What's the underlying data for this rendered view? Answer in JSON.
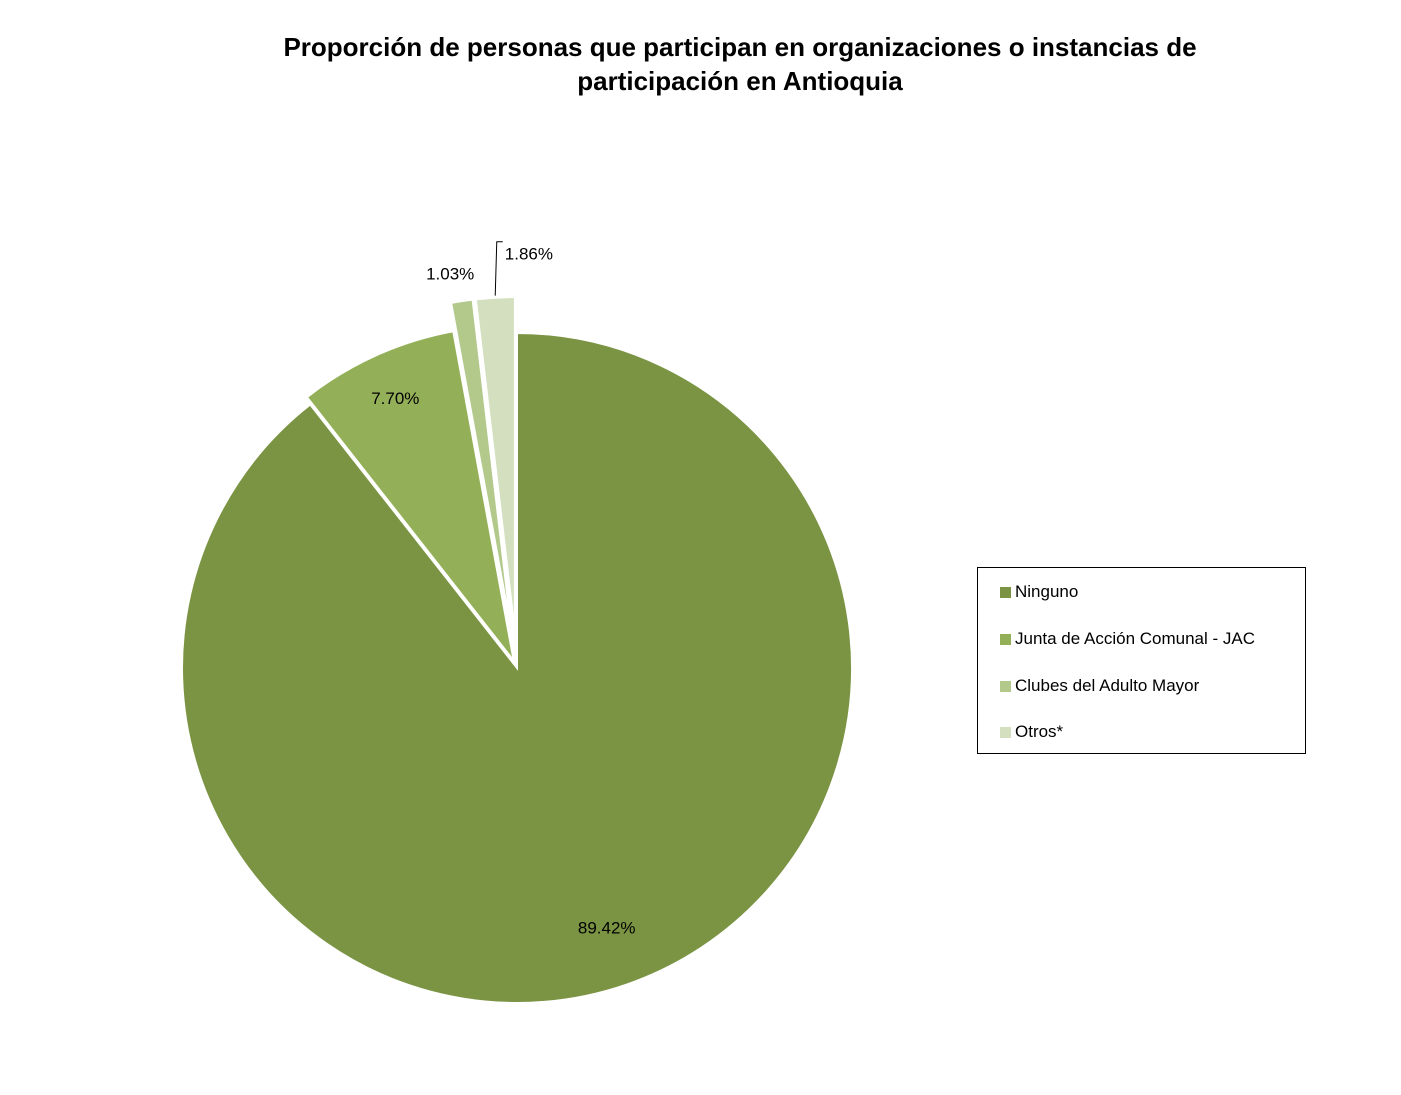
{
  "chart_data": {
    "type": "pie",
    "title_lines": [
      "Proporción de personas que participan en organizaciones o instancias de",
      "participación en Antioquia"
    ],
    "slices": [
      {
        "name": "Ninguno",
        "value": 89.42,
        "label": "89.42%",
        "color": "#7b9443"
      },
      {
        "name": "Junta de Acción Comunal - JAC",
        "value": 7.7,
        "label": "7.70%",
        "color": "#93b058"
      },
      {
        "name": "Clubes del Adulto Mayor",
        "value": 1.03,
        "label": "1.03%",
        "color": "#b3c98c"
      },
      {
        "name": "Otros*",
        "value": 1.86,
        "label": "1.86%",
        "color": "#d3dfbe"
      }
    ],
    "start_angle": "12 o'clock",
    "direction": "clockwise",
    "legend_position": "right"
  }
}
